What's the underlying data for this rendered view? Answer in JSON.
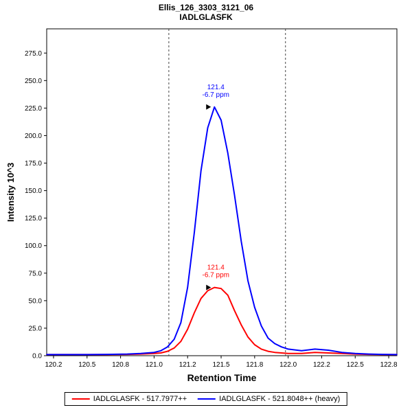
{
  "header": {
    "title": "Ellis_126_3303_3121_06",
    "subtitle": "IADLGLASFK"
  },
  "chart_data": {
    "type": "line",
    "title": "Ellis_126_3303_3121_06",
    "subtitle": "IADLGLASFK",
    "xlabel": "Retention Time",
    "ylabel": "Intensity 10^3",
    "xlim": [
      120.199,
      122.811
    ],
    "ylim": [
      0,
      297
    ],
    "grid": false,
    "legend_position": "bottom",
    "x_ticks": [
      {
        "v": 120.25,
        "label": "120.2"
      },
      {
        "v": 120.5,
        "label": "120.5"
      },
      {
        "v": 120.75,
        "label": "120.8"
      },
      {
        "v": 121.0,
        "label": "121.0"
      },
      {
        "v": 121.25,
        "label": "121.2"
      },
      {
        "v": 121.5,
        "label": "121.5"
      },
      {
        "v": 121.75,
        "label": "121.8"
      },
      {
        "v": 122.0,
        "label": "122.0"
      },
      {
        "v": 122.25,
        "label": "122.2"
      },
      {
        "v": 122.5,
        "label": "122.5"
      },
      {
        "v": 122.75,
        "label": "122.8"
      }
    ],
    "y_ticks": [
      {
        "v": 0,
        "label": "0.0"
      },
      {
        "v": 25,
        "label": "25.0"
      },
      {
        "v": 50,
        "label": "50.0"
      },
      {
        "v": 75,
        "label": "75.0"
      },
      {
        "v": 100,
        "label": "100.0"
      },
      {
        "v": 125,
        "label": "125.0"
      },
      {
        "v": 150,
        "label": "150.0"
      },
      {
        "v": 175,
        "label": "175.0"
      },
      {
        "v": 200,
        "label": "200.0"
      },
      {
        "v": 225,
        "label": "225.0"
      },
      {
        "v": 250,
        "label": "250.0"
      },
      {
        "v": 275,
        "label": "275.0"
      }
    ],
    "integration_boundaries": [
      121.11,
      121.98
    ],
    "series": [
      {
        "name": "IADLGLASFK - 517.7977++",
        "color": "#ff0000",
        "x": [
          120.2,
          120.35,
          120.5,
          120.65,
          120.8,
          120.9,
          121.0,
          121.05,
          121.1,
          121.15,
          121.2,
          121.25,
          121.3,
          121.35,
          121.4,
          121.45,
          121.5,
          121.55,
          121.6,
          121.65,
          121.7,
          121.75,
          121.8,
          121.85,
          121.9,
          121.95,
          122.0,
          122.1,
          122.2,
          122.3,
          122.4,
          122.5,
          122.6,
          122.7,
          122.81
        ],
        "y": [
          1,
          1,
          1,
          1,
          1.2,
          1.5,
          2,
          2.5,
          4,
          7,
          13,
          24,
          39,
          52,
          59,
          62,
          61,
          55,
          41,
          28,
          17,
          10,
          6,
          4,
          3,
          2.5,
          2,
          2,
          3,
          2.5,
          2,
          1.5,
          1.2,
          1,
          1
        ],
        "annotation": {
          "rt_label": "121.4",
          "ppm_label": "-6.7 ppm",
          "apex_rt": 121.45,
          "apex_intensity": 62
        }
      },
      {
        "name": "IADLGLASFK - 521.8048++ (heavy)",
        "color": "#0000ff",
        "x": [
          120.2,
          120.35,
          120.5,
          120.65,
          120.8,
          120.9,
          121.0,
          121.05,
          121.1,
          121.15,
          121.2,
          121.25,
          121.3,
          121.35,
          121.4,
          121.45,
          121.5,
          121.55,
          121.6,
          121.65,
          121.7,
          121.75,
          121.8,
          121.85,
          121.9,
          121.95,
          122.0,
          122.1,
          122.2,
          122.3,
          122.4,
          122.5,
          122.6,
          122.7,
          122.81
        ],
        "y": [
          1,
          1,
          1,
          1.2,
          1.5,
          2,
          3,
          4.5,
          8,
          15,
          30,
          62,
          112,
          168,
          207,
          226,
          214,
          184,
          146,
          104,
          68,
          44,
          27,
          16,
          11,
          8,
          6,
          4.5,
          6,
          5,
          3,
          2,
          1.5,
          1.2,
          1
        ],
        "annotation": {
          "rt_label": "121.4",
          "ppm_label": "-6.7 ppm",
          "apex_rt": 121.45,
          "apex_intensity": 226
        }
      }
    ]
  },
  "legend": {
    "items": [
      {
        "label": "IADLGLASFK - 517.7977++",
        "color": "#ff0000"
      },
      {
        "label": "IADLGLASFK - 521.8048++ (heavy)",
        "color": "#0000ff"
      }
    ]
  },
  "colors": {
    "axis": "#000000",
    "boundary_line": "#444444",
    "background": "#ffffff"
  }
}
